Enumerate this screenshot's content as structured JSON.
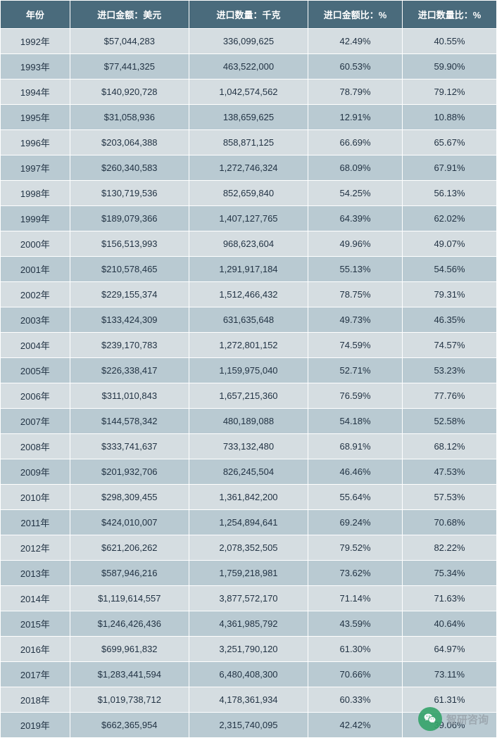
{
  "table": {
    "type": "table",
    "header_bg": "#4a6b7c",
    "header_fg": "#ffffff",
    "row_odd_bg": "#d5dde1",
    "row_even_bg": "#b9cad2",
    "border_color": "#ffffff",
    "text_color": "#223344",
    "font_size_header": 13,
    "font_size_cell": 13,
    "columns": [
      {
        "key": "year",
        "label": "年份",
        "width_pct": 14,
        "align": "center"
      },
      {
        "key": "import_amount",
        "label": "进口金额：美元",
        "width_pct": 24,
        "align": "center"
      },
      {
        "key": "import_qty",
        "label": "进口数量：千克",
        "width_pct": 24,
        "align": "center"
      },
      {
        "key": "amount_ratio",
        "label": "进口金额比：%",
        "width_pct": 19,
        "align": "center"
      },
      {
        "key": "qty_ratio",
        "label": "进口数量比：%",
        "width_pct": 19,
        "align": "center"
      }
    ],
    "rows": [
      {
        "year": "1992年",
        "import_amount": "$57,044,283",
        "import_qty": "336,099,625",
        "amount_ratio": "42.49%",
        "qty_ratio": "40.55%"
      },
      {
        "year": "1993年",
        "import_amount": "$77,441,325",
        "import_qty": "463,522,000",
        "amount_ratio": "60.53%",
        "qty_ratio": "59.90%"
      },
      {
        "year": "1994年",
        "import_amount": "$140,920,728",
        "import_qty": "1,042,574,562",
        "amount_ratio": "78.79%",
        "qty_ratio": "79.12%"
      },
      {
        "year": "1995年",
        "import_amount": "$31,058,936",
        "import_qty": "138,659,625",
        "amount_ratio": "12.91%",
        "qty_ratio": "10.88%"
      },
      {
        "year": "1996年",
        "import_amount": "$203,064,388",
        "import_qty": "858,871,125",
        "amount_ratio": "66.69%",
        "qty_ratio": "65.67%"
      },
      {
        "year": "1997年",
        "import_amount": "$260,340,583",
        "import_qty": "1,272,746,324",
        "amount_ratio": "68.09%",
        "qty_ratio": "67.91%"
      },
      {
        "year": "1998年",
        "import_amount": "$130,719,536",
        "import_qty": "852,659,840",
        "amount_ratio": "54.25%",
        "qty_ratio": "56.13%"
      },
      {
        "year": "1999年",
        "import_amount": "$189,079,366",
        "import_qty": "1,407,127,765",
        "amount_ratio": "64.39%",
        "qty_ratio": "62.02%"
      },
      {
        "year": "2000年",
        "import_amount": "$156,513,993",
        "import_qty": "968,623,604",
        "amount_ratio": "49.96%",
        "qty_ratio": "49.07%"
      },
      {
        "year": "2001年",
        "import_amount": "$210,578,465",
        "import_qty": "1,291,917,184",
        "amount_ratio": "55.13%",
        "qty_ratio": "54.56%"
      },
      {
        "year": "2002年",
        "import_amount": "$229,155,374",
        "import_qty": "1,512,466,432",
        "amount_ratio": "78.75%",
        "qty_ratio": "79.31%"
      },
      {
        "year": "2003年",
        "import_amount": "$133,424,309",
        "import_qty": "631,635,648",
        "amount_ratio": "49.73%",
        "qty_ratio": "46.35%"
      },
      {
        "year": "2004年",
        "import_amount": "$239,170,783",
        "import_qty": "1,272,801,152",
        "amount_ratio": "74.59%",
        "qty_ratio": "74.57%"
      },
      {
        "year": "2005年",
        "import_amount": "$226,338,417",
        "import_qty": "1,159,975,040",
        "amount_ratio": "52.71%",
        "qty_ratio": "53.23%"
      },
      {
        "year": "2006年",
        "import_amount": "$311,010,843",
        "import_qty": "1,657,215,360",
        "amount_ratio": "76.59%",
        "qty_ratio": "77.76%"
      },
      {
        "year": "2007年",
        "import_amount": "$144,578,342",
        "import_qty": "480,189,088",
        "amount_ratio": "54.18%",
        "qty_ratio": "52.58%"
      },
      {
        "year": "2008年",
        "import_amount": "$333,741,637",
        "import_qty": "733,132,480",
        "amount_ratio": "68.91%",
        "qty_ratio": "68.12%"
      },
      {
        "year": "2009年",
        "import_amount": "$201,932,706",
        "import_qty": "826,245,504",
        "amount_ratio": "46.46%",
        "qty_ratio": "47.53%"
      },
      {
        "year": "2010年",
        "import_amount": "$298,309,455",
        "import_qty": "1,361,842,200",
        "amount_ratio": "55.64%",
        "qty_ratio": "57.53%"
      },
      {
        "year": "2011年",
        "import_amount": "$424,010,007",
        "import_qty": "1,254,894,641",
        "amount_ratio": "69.24%",
        "qty_ratio": "70.68%"
      },
      {
        "year": "2012年",
        "import_amount": "$621,206,262",
        "import_qty": "2,078,352,505",
        "amount_ratio": "79.52%",
        "qty_ratio": "82.22%"
      },
      {
        "year": "2013年",
        "import_amount": "$587,946,216",
        "import_qty": "1,759,218,981",
        "amount_ratio": "73.62%",
        "qty_ratio": "75.34%"
      },
      {
        "year": "2014年",
        "import_amount": "$1,119,614,557",
        "import_qty": "3,877,572,170",
        "amount_ratio": "71.14%",
        "qty_ratio": "71.63%"
      },
      {
        "year": "2015年",
        "import_amount": "$1,246,426,436",
        "import_qty": "4,361,985,792",
        "amount_ratio": "43.59%",
        "qty_ratio": "40.64%"
      },
      {
        "year": "2016年",
        "import_amount": "$699,961,832",
        "import_qty": "3,251,790,120",
        "amount_ratio": "61.30%",
        "qty_ratio": "64.97%"
      },
      {
        "year": "2017年",
        "import_amount": "$1,283,441,594",
        "import_qty": "6,480,408,300",
        "amount_ratio": "70.66%",
        "qty_ratio": "73.11%"
      },
      {
        "year": "2018年",
        "import_amount": "$1,019,738,712",
        "import_qty": "4,178,361,934",
        "amount_ratio": "60.33%",
        "qty_ratio": "61.31%"
      },
      {
        "year": "2019年",
        "import_amount": "$662,365,954",
        "import_qty": "2,315,740,095",
        "amount_ratio": "42.42%",
        "qty_ratio": "39.06%"
      }
    ]
  },
  "watermark": {
    "text": "智研咨询",
    "circle_bg": "#35a46a",
    "text_color": "#9aa5ad"
  }
}
